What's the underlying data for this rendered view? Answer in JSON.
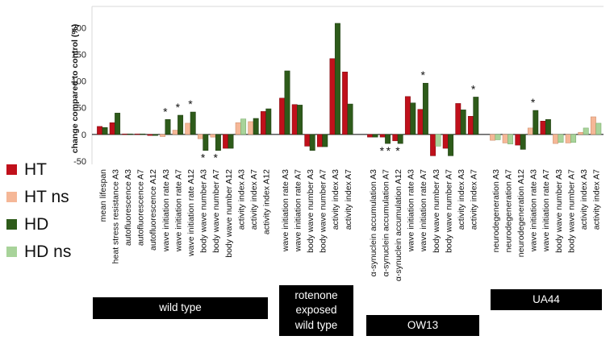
{
  "chart_data": {
    "type": "bar",
    "ylabel": "change compared to control (%)",
    "ylim": [
      -50,
      220
    ],
    "yticks": [
      -50,
      0,
      50,
      100,
      150,
      200
    ],
    "grid": false,
    "legend": {
      "placement": "left",
      "entries": [
        {
          "key": "HT",
          "label": "HT",
          "color": "#c0101b"
        },
        {
          "key": "HTns",
          "label": "HT ns",
          "color": "#f5b797"
        },
        {
          "key": "HD",
          "label": "HD",
          "color": "#2e5b1a"
        },
        {
          "key": "HDns",
          "label": "HD ns",
          "color": "#a8d39a"
        }
      ]
    },
    "groups": [
      {
        "name": "wild type",
        "categories": [
          {
            "label": "mean lifespan",
            "bars": [
              {
                "v": 15,
                "s": "HT"
              },
              {
                "v": 13,
                "s": "HD"
              }
            ],
            "stars": []
          },
          {
            "label": "heat stress resistance A3",
            "bars": [
              {
                "v": 22,
                "s": "HT"
              },
              {
                "v": 40,
                "s": "HD"
              }
            ],
            "stars": []
          },
          {
            "label": "autofluorescence A3",
            "bars": [
              {
                "v": 1,
                "s": "HT"
              },
              {
                "v": 1,
                "s": "HD"
              }
            ],
            "stars": []
          },
          {
            "label": "autofluorescence A7",
            "bars": [
              {
                "v": 1,
                "s": "HT"
              },
              {
                "v": 1,
                "s": "HD"
              }
            ],
            "stars": []
          },
          {
            "label": "autofluorescence A12",
            "bars": [
              {
                "v": -2,
                "s": "HT"
              },
              {
                "v": -2,
                "s": "HD"
              }
            ],
            "stars": []
          },
          {
            "label": "wave initiation rate A3",
            "bars": [
              {
                "v": -4,
                "s": "HTns"
              },
              {
                "v": 28,
                "s": "HD"
              }
            ],
            "stars": [
              "*"
            ]
          },
          {
            "label": "wave initiation rate A7",
            "bars": [
              {
                "v": 8,
                "s": "HTns"
              },
              {
                "v": 36,
                "s": "HD"
              }
            ],
            "stars": [
              "*"
            ]
          },
          {
            "label": "wave initiation rate A12",
            "bars": [
              {
                "v": 21,
                "s": "HTns"
              },
              {
                "v": 42,
                "s": "HD"
              }
            ],
            "stars": [
              "*"
            ]
          },
          {
            "label": "body wave number A3",
            "bars": [
              {
                "v": -8,
                "s": "HTns"
              },
              {
                "v": -30,
                "s": "HD"
              }
            ],
            "stars": [
              "*"
            ]
          },
          {
            "label": "body wave number A7",
            "bars": [
              {
                "v": -5,
                "s": "HTns"
              },
              {
                "v": -30,
                "s": "HD"
              }
            ],
            "stars": [
              "*"
            ]
          },
          {
            "label": "body wave number A12",
            "bars": [
              {
                "v": -26,
                "s": "HT"
              },
              {
                "v": -26,
                "s": "HD"
              }
            ],
            "stars": []
          },
          {
            "label": "activity index A3",
            "bars": [
              {
                "v": 22,
                "s": "HTns"
              },
              {
                "v": 29,
                "s": "HDns"
              }
            ],
            "stars": []
          },
          {
            "label": "activity index A7",
            "bars": [
              {
                "v": 24,
                "s": "HTns"
              },
              {
                "v": 30,
                "s": "HD"
              }
            ],
            "stars": []
          },
          {
            "label": "activity index A12",
            "bars": [
              {
                "v": 43,
                "s": "HT"
              },
              {
                "v": 48,
                "s": "HD"
              }
            ],
            "stars": []
          }
        ]
      },
      {
        "name_lines": [
          "rotenone",
          "exposed",
          "wild type"
        ],
        "categories": [
          {
            "label": "wave initiation rate A3",
            "bars": [
              {
                "v": 68,
                "s": "HT"
              },
              {
                "v": 119,
                "s": "HD"
              }
            ],
            "stars": []
          },
          {
            "label": "wave initiation rate A7",
            "bars": [
              {
                "v": 56,
                "s": "HT"
              },
              {
                "v": 55,
                "s": "HD"
              }
            ],
            "stars": []
          },
          {
            "label": "body wave number A3",
            "bars": [
              {
                "v": -22,
                "s": "HT"
              },
              {
                "v": -30,
                "s": "HD"
              }
            ],
            "stars": []
          },
          {
            "label": "body wave number A7",
            "bars": [
              {
                "v": -23,
                "s": "HT"
              },
              {
                "v": -23,
                "s": "HD"
              }
            ],
            "stars": []
          },
          {
            "label": "activity index A3",
            "bars": [
              {
                "v": 142,
                "s": "HT"
              },
              {
                "v": 208,
                "s": "HD"
              }
            ],
            "stars": []
          },
          {
            "label": "activity index A7",
            "bars": [
              {
                "v": 117,
                "s": "HT"
              },
              {
                "v": 57,
                "s": "HD"
              }
            ],
            "stars": []
          }
        ]
      },
      {
        "name": "OW13",
        "categories": [
          {
            "label": "α-synuclein accumulation A3",
            "bars": [
              {
                "v": -5,
                "s": "HT"
              },
              {
                "v": -5,
                "s": "HD"
              }
            ],
            "stars": []
          },
          {
            "label": "α-synuclein accumulation A7",
            "bars": [
              {
                "v": -5,
                "s": "HT"
              },
              {
                "v": -17,
                "s": "HD"
              }
            ],
            "stars": [
              "*",
              "*"
            ]
          },
          {
            "label": "α-synuclein accumulation A12",
            "bars": [
              {
                "v": -12,
                "s": "HT"
              },
              {
                "v": -17,
                "s": "HD"
              }
            ],
            "stars": [
              "*"
            ]
          },
          {
            "label": "wave initiation rate A3",
            "bars": [
              {
                "v": 71,
                "s": "HT"
              },
              {
                "v": 59,
                "s": "HD"
              }
            ],
            "stars": []
          },
          {
            "label": "wave initiation rate A7",
            "bars": [
              {
                "v": 47,
                "s": "HT"
              },
              {
                "v": 96,
                "s": "HD"
              }
            ],
            "stars": [
              "*"
            ]
          },
          {
            "label": "body wave number A3",
            "bars": [
              {
                "v": -40,
                "s": "HT"
              },
              {
                "v": -22,
                "s": "HDns"
              }
            ],
            "stars": []
          },
          {
            "label": "body wave number A7",
            "bars": [
              {
                "v": -26,
                "s": "HT"
              },
              {
                "v": -40,
                "s": "HD"
              }
            ],
            "stars": []
          },
          {
            "label": "activity index A3",
            "bars": [
              {
                "v": 58,
                "s": "HT"
              },
              {
                "v": 46,
                "s": "HD"
              }
            ],
            "stars": []
          },
          {
            "label": "activity index A7",
            "bars": [
              {
                "v": 34,
                "s": "HT"
              },
              {
                "v": 70,
                "s": "HD"
              }
            ],
            "stars": [
              "*"
            ]
          }
        ]
      },
      {
        "name": "UA44",
        "categories": [
          {
            "label": "neurodegeneration A3",
            "bars": [
              {
                "v": -11,
                "s": "HTns"
              },
              {
                "v": -10,
                "s": "HDns"
              }
            ],
            "stars": []
          },
          {
            "label": "neurodegeneration A7",
            "bars": [
              {
                "v": -16,
                "s": "HTns"
              },
              {
                "v": -18,
                "s": "HDns"
              }
            ],
            "stars": []
          },
          {
            "label": "neurodegeneration A12",
            "bars": [
              {
                "v": -20,
                "s": "HT"
              },
              {
                "v": -28,
                "s": "HD"
              }
            ],
            "stars": []
          },
          {
            "label": "wave initiation rate A3",
            "bars": [
              {
                "v": 12,
                "s": "HTns"
              },
              {
                "v": 45,
                "s": "HD"
              }
            ],
            "stars": [
              "*"
            ]
          },
          {
            "label": "wave initiation rate A7",
            "bars": [
              {
                "v": 25,
                "s": "HT"
              },
              {
                "v": 28,
                "s": "HD"
              }
            ],
            "stars": []
          },
          {
            "label": "body wave number A3",
            "bars": [
              {
                "v": -17,
                "s": "HTns"
              },
              {
                "v": -15,
                "s": "HDns"
              }
            ],
            "stars": []
          },
          {
            "label": "body wave number A7",
            "bars": [
              {
                "v": -16,
                "s": "HTns"
              },
              {
                "v": -15,
                "s": "HDns"
              }
            ],
            "stars": []
          },
          {
            "label": "activity index A3",
            "bars": [
              {
                "v": 4,
                "s": "HTns"
              },
              {
                "v": 12,
                "s": "HDns"
              }
            ],
            "stars": []
          },
          {
            "label": "activity index A7",
            "bars": [
              {
                "v": 33,
                "s": "HTns"
              },
              {
                "v": 21,
                "s": "HDns"
              }
            ],
            "stars": []
          }
        ]
      }
    ]
  }
}
